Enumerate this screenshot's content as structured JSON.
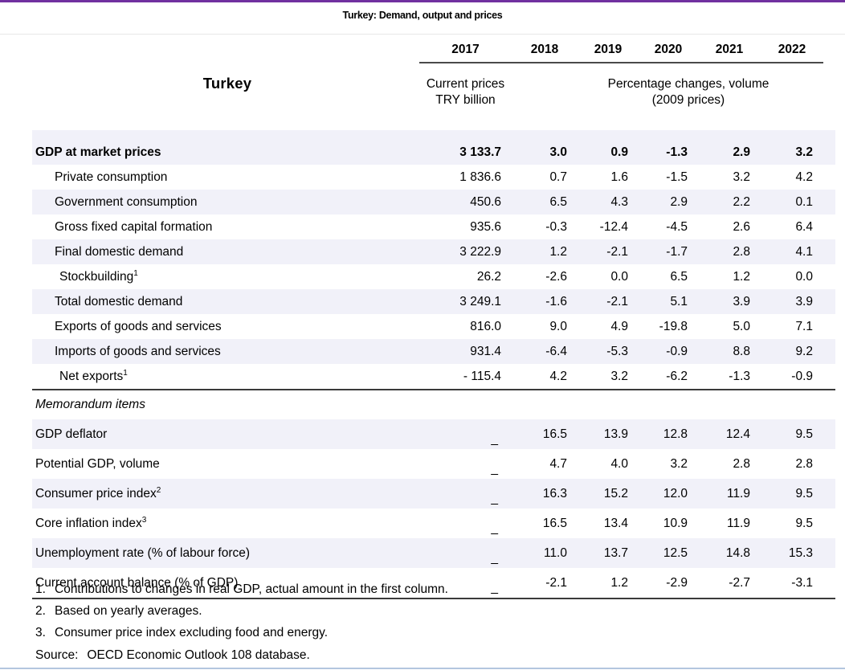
{
  "title": "Turkey: Demand, output and prices",
  "table": {
    "country_label": "Turkey",
    "years": [
      "2017",
      "2018",
      "2019",
      "2020",
      "2021",
      "2022"
    ],
    "units": {
      "col2017_line1": "Current prices",
      "col2017_line2": "TRY billion",
      "volume_line1": "Percentage changes, volume",
      "volume_line2": "(2009 prices)"
    },
    "main_rows": [
      {
        "label": "GDP at market prices",
        "values": [
          "3 133.7",
          "3.0",
          "0.9",
          "-1.3",
          "2.9",
          "3.2"
        ]
      },
      {
        "label": "Private consumption",
        "values": [
          "1 836.6",
          "0.7",
          "1.6",
          "-1.5",
          "3.2",
          "4.2"
        ]
      },
      {
        "label": "Government consumption",
        "values": [
          "450.6",
          "6.5",
          "4.3",
          "2.9",
          "2.2",
          "0.1"
        ]
      },
      {
        "label": "Gross fixed capital formation",
        "values": [
          "935.6",
          "-0.3",
          "-12.4",
          "-4.5",
          "2.6",
          "6.4"
        ]
      },
      {
        "label": "Final domestic demand",
        "values": [
          "3 222.9",
          "1.2",
          "-2.1",
          "-1.7",
          "2.8",
          "4.1"
        ]
      },
      {
        "label": "Stockbuilding",
        "sup": "1",
        "values": [
          "26.2",
          "-2.6",
          "0.0",
          "6.5",
          "1.2",
          "0.0"
        ]
      },
      {
        "label": "Total domestic demand",
        "values": [
          "3 249.1",
          "-1.6",
          "-2.1",
          "5.1",
          "3.9",
          "3.9"
        ]
      },
      {
        "label": "Exports of goods and services",
        "values": [
          "816.0",
          "9.0",
          "4.9",
          "-19.8",
          "5.0",
          "7.1"
        ]
      },
      {
        "label": "Imports of goods and services",
        "values": [
          "931.4",
          "-6.4",
          "-5.3",
          "-0.9",
          "8.8",
          "9.2"
        ]
      },
      {
        "label": "Net exports",
        "sup": "1",
        "values": [
          "- 115.4",
          "4.2",
          "3.2",
          "-6.2",
          "-1.3",
          "-0.9"
        ]
      }
    ],
    "memo_header": "Memorandum items",
    "memo_rows": [
      {
        "label": "GDP deflator",
        "values": [
          "_",
          "16.5",
          "13.9",
          "12.8",
          "12.4",
          "9.5"
        ]
      },
      {
        "label": "Potential GDP, volume",
        "values": [
          "_",
          "4.7",
          "4.0",
          "3.2",
          "2.8",
          "2.8"
        ]
      },
      {
        "label": "Consumer price index",
        "sup": "2",
        "values": [
          "_",
          "16.3",
          "15.2",
          "12.0",
          "11.9",
          "9.5"
        ]
      },
      {
        "label": "Core inflation index",
        "sup": "3",
        "values": [
          "_",
          "16.5",
          "13.4",
          "10.9",
          "11.9",
          "9.5"
        ]
      },
      {
        "label": "Unemployment rate (% of labour force)",
        "values": [
          "_",
          "11.0",
          "13.7",
          "12.5",
          "14.8",
          "15.3"
        ]
      },
      {
        "label": "Current account balance (% of GDP)",
        "values": [
          "_",
          "-2.1",
          "1.2",
          "-2.9",
          "-2.7",
          "-3.1"
        ]
      }
    ]
  },
  "footnotes": [
    {
      "num": "1.",
      "text": "Contributions to changes in real GDP, actual amount in the first column."
    },
    {
      "num": "2.",
      "text": "Based on yearly averages."
    },
    {
      "num": "3.",
      "text": "Consumer price index excluding food and energy."
    }
  ],
  "source": {
    "label": "Source:",
    "text": "OECD Economic Outlook 108 database."
  },
  "colors": {
    "accent_top_border": "#7030A0",
    "row_shade": "#F1F1F9",
    "rule_dark": "#3F3F3F",
    "rule_light": "#E8E8E8",
    "bottom_edge": "#B3C6DF"
  }
}
